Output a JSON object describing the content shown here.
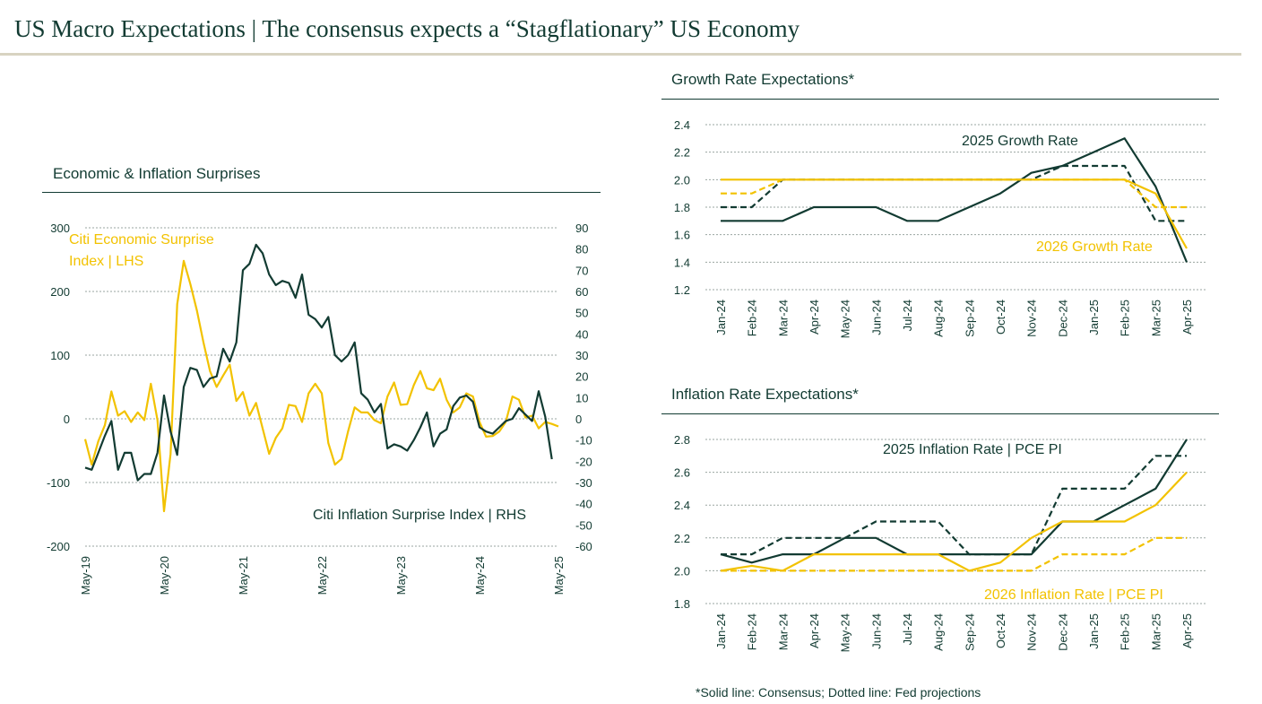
{
  "header": {
    "title": "US Macro Expectations | The consensus expects a “Stagflationary” US Economy"
  },
  "footnote": "*Solid line: Consensus; Dotted line: Fed projections",
  "colors": {
    "dark": "#123b32",
    "gold": "#f2c200",
    "grid": "#9aa5a1"
  },
  "chart_data": [
    {
      "id": "surprises",
      "type": "line",
      "title": "Economic & Inflation Surprises",
      "x_tick_labels": [
        "May-19",
        "May-20",
        "May-21",
        "May-22",
        "May-23",
        "May-24",
        "May-25"
      ],
      "x_tick_index": [
        0,
        12,
        24,
        36,
        48,
        60,
        72
      ],
      "y_left": {
        "min": -200,
        "max": 300,
        "ticks": [
          -200,
          -100,
          0,
          100,
          200,
          300
        ]
      },
      "y_right": {
        "min": -60,
        "max": 90,
        "ticks": [
          -60,
          -50,
          -40,
          -30,
          -20,
          -10,
          0,
          10,
          20,
          30,
          40,
          50,
          60,
          70,
          80,
          90
        ]
      },
      "annotations": {
        "economic_line1": "Citi Economic Surprise",
        "economic_line2": "Index | LHS",
        "inflation": "Citi Inflation Surprise Index | RHS"
      },
      "series": [
        {
          "name": "Citi Economic Surprise Index",
          "axis": "left",
          "color": "#f2c200",
          "values": [
            -32,
            -72,
            -35,
            -10,
            43,
            5,
            12,
            -5,
            10,
            -2,
            55,
            -2,
            -145,
            -55,
            180,
            248,
            212,
            170,
            120,
            75,
            50,
            68,
            85,
            28,
            42,
            5,
            25,
            -15,
            -55,
            -30,
            -15,
            22,
            20,
            -5,
            40,
            55,
            40,
            -38,
            -72,
            -63,
            -20,
            18,
            10,
            10,
            -2,
            -7,
            35,
            57,
            22,
            23,
            53,
            75,
            48,
            45,
            63,
            30,
            10,
            18,
            40,
            35,
            -5,
            -28,
            -27,
            -20,
            -5,
            35,
            30,
            2,
            5,
            -15,
            -5,
            -8,
            -12
          ]
        },
        {
          "name": "Citi Inflation Surprise Index",
          "axis": "right",
          "color": "#123b32",
          "values": [
            -23,
            -24,
            -16,
            -8,
            -1,
            -24,
            -16,
            -16,
            -29,
            -26,
            -26,
            -16,
            11,
            -6,
            -17,
            15,
            24,
            23,
            15,
            19,
            20,
            33,
            27,
            36,
            70,
            73,
            82,
            78,
            68,
            63,
            65,
            64,
            57,
            68,
            49,
            47,
            43,
            48,
            30,
            27,
            30,
            36,
            12,
            9,
            3,
            7,
            -14,
            -12,
            -13,
            -15,
            -10,
            -4,
            3,
            -13,
            -7,
            -5,
            6,
            10,
            11,
            8,
            -4,
            -6,
            -7,
            -4,
            -1,
            0,
            5,
            2,
            -1,
            13,
            1,
            -19
          ]
        }
      ]
    },
    {
      "id": "growth",
      "type": "line",
      "title": "Growth Rate Expectations*",
      "categories": [
        "Jan-24",
        "Feb-24",
        "Mar-24",
        "Apr-24",
        "May-24",
        "Jun-24",
        "Jul-24",
        "Aug-24",
        "Sep-24",
        "Oct-24",
        "Nov-24",
        "Dec-24",
        "Jan-25",
        "Feb-25",
        "Mar-25",
        "Apr-25"
      ],
      "y": {
        "min": 1.2,
        "max": 2.4,
        "ticks": [
          1.2,
          1.4,
          1.6,
          1.8,
          2.0,
          2.2,
          2.4
        ]
      },
      "annotations": {
        "series_2025": "2025 Growth Rate",
        "series_2026": "2026 Growth Rate"
      },
      "series": [
        {
          "name": "2025 Growth Rate (Consensus)",
          "style": "solid",
          "color": "#123b32",
          "values": [
            1.7,
            1.7,
            1.7,
            1.8,
            1.8,
            1.8,
            1.7,
            1.7,
            1.8,
            1.9,
            2.05,
            2.1,
            2.2,
            2.3,
            1.95,
            1.4
          ]
        },
        {
          "name": "2025 Growth Rate (Fed)",
          "style": "dashed",
          "color": "#123b32",
          "values": [
            1.8,
            1.8,
            2.0,
            2.0,
            2.0,
            2.0,
            2.0,
            2.0,
            2.0,
            2.0,
            2.0,
            2.1,
            2.1,
            2.1,
            1.7,
            1.7
          ]
        },
        {
          "name": "2026 Growth Rate (Consensus)",
          "style": "solid",
          "color": "#f2c200",
          "values": [
            2.0,
            2.0,
            2.0,
            2.0,
            2.0,
            2.0,
            2.0,
            2.0,
            2.0,
            2.0,
            2.0,
            2.0,
            2.0,
            2.0,
            1.9,
            1.5
          ]
        },
        {
          "name": "2026 Growth Rate (Fed)",
          "style": "dashed",
          "color": "#f2c200",
          "values": [
            1.9,
            1.9,
            2.0,
            2.0,
            2.0,
            2.0,
            2.0,
            2.0,
            2.0,
            2.0,
            2.0,
            2.0,
            2.0,
            2.0,
            1.8,
            1.8
          ]
        }
      ]
    },
    {
      "id": "inflation",
      "type": "line",
      "title": "Inflation Rate Expectations*",
      "categories": [
        "Jan-24",
        "Feb-24",
        "Mar-24",
        "Apr-24",
        "May-24",
        "Jun-24",
        "Jul-24",
        "Aug-24",
        "Sep-24",
        "Oct-24",
        "Nov-24",
        "Dec-24",
        "Jan-25",
        "Feb-25",
        "Mar-25",
        "Apr-25"
      ],
      "y": {
        "min": 1.8,
        "max": 2.8,
        "ticks": [
          1.8,
          2.0,
          2.2,
          2.4,
          2.6,
          2.8
        ]
      },
      "annotations": {
        "series_2025": "2025 Inflation Rate | PCE PI",
        "series_2026": "2026 Inflation Rate | PCE PI"
      },
      "series": [
        {
          "name": "2025 Inflation Rate (Consensus)",
          "style": "solid",
          "color": "#123b32",
          "values": [
            2.1,
            2.05,
            2.1,
            2.1,
            2.2,
            2.2,
            2.1,
            2.1,
            2.1,
            2.1,
            2.1,
            2.3,
            2.3,
            2.4,
            2.5,
            2.8
          ]
        },
        {
          "name": "2025 Inflation Rate (Fed)",
          "style": "dashed",
          "color": "#123b32",
          "values": [
            2.1,
            2.1,
            2.2,
            2.2,
            2.2,
            2.3,
            2.3,
            2.3,
            2.1,
            2.1,
            2.1,
            2.5,
            2.5,
            2.5,
            2.7,
            2.7
          ]
        },
        {
          "name": "2026 Inflation Rate (Consensus)",
          "style": "solid",
          "color": "#f2c200",
          "values": [
            2.0,
            2.03,
            2.0,
            2.1,
            2.1,
            2.1,
            2.1,
            2.1,
            2.0,
            2.05,
            2.2,
            2.3,
            2.3,
            2.3,
            2.4,
            2.6
          ]
        },
        {
          "name": "2026 Inflation Rate (Fed)",
          "style": "dashed",
          "color": "#f2c200",
          "values": [
            2.0,
            2.0,
            2.0,
            2.0,
            2.0,
            2.0,
            2.0,
            2.0,
            2.0,
            2.0,
            2.0,
            2.1,
            2.1,
            2.1,
            2.2,
            2.2
          ]
        }
      ]
    }
  ]
}
